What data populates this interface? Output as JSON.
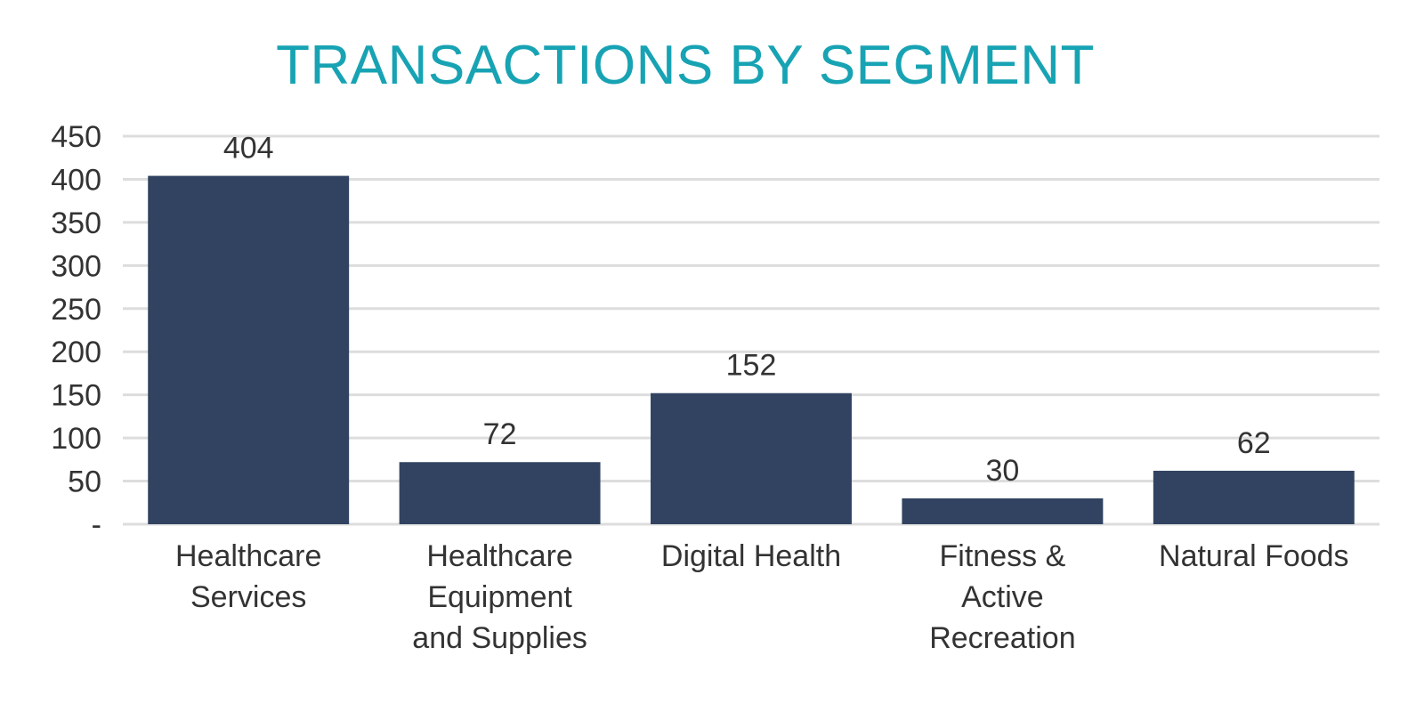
{
  "chart_data": {
    "type": "bar",
    "title": "TRANSACTIONS BY SEGMENT",
    "categories": [
      [
        "Healthcare",
        "Services"
      ],
      [
        "Healthcare",
        "Equipment",
        "and Supplies"
      ],
      [
        "Digital Health"
      ],
      [
        "Fitness &",
        "Active",
        "Recreation"
      ],
      [
        "Natural Foods"
      ]
    ],
    "values": [
      404,
      72,
      152,
      30,
      62
    ],
    "data_labels": [
      "404",
      "72",
      "152",
      "30",
      "62"
    ],
    "ylim": [
      0,
      450
    ],
    "y_ticks": [
      0,
      50,
      100,
      150,
      200,
      250,
      300,
      350,
      400,
      450
    ],
    "y_tick_labels": [
      "-",
      "50",
      "100",
      "150",
      "200",
      "250",
      "300",
      "350",
      "400",
      "450"
    ],
    "grid": true,
    "legend": "none",
    "colors": {
      "bar": "#314361",
      "title": "#17a3b3",
      "grid": "#dddddd",
      "text": "#333333"
    }
  }
}
